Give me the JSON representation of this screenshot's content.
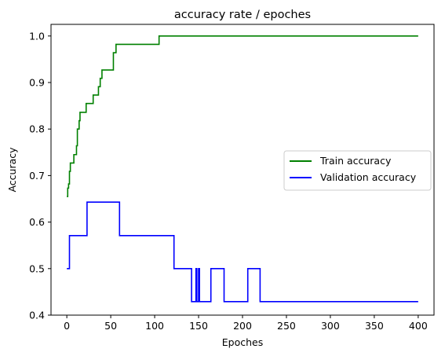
{
  "chart_data": {
    "type": "line",
    "title": "accuracy rate / epoches",
    "xlabel": "Epoches",
    "ylabel": "Accuracy",
    "xlim": [
      -18,
      418
    ],
    "ylim": [
      0.4,
      1.025
    ],
    "xticks": [
      0,
      50,
      100,
      150,
      200,
      250,
      300,
      350,
      400
    ],
    "yticks": [
      0.4,
      0.5,
      0.6,
      0.7,
      0.8,
      0.9,
      1.0
    ],
    "xtick_labels": [
      "0",
      "50",
      "100",
      "150",
      "200",
      "250",
      "300",
      "350",
      "400"
    ],
    "ytick_labels": [
      "0.4",
      "0.5",
      "0.6",
      "0.7",
      "0.8",
      "0.9",
      "1.0"
    ],
    "grid": false,
    "legend_position": "center-right",
    "series": [
      {
        "name": "Train accuracy",
        "color": "#008000",
        "x": [
          0,
          1,
          1,
          2,
          2,
          3,
          3,
          4,
          4,
          8,
          8,
          11,
          11,
          12,
          12,
          14,
          14,
          15,
          15,
          16,
          16,
          22,
          22,
          26,
          26,
          30,
          30,
          36,
          36,
          37,
          37,
          38,
          38,
          40,
          40,
          47,
          47,
          53,
          53,
          55,
          55,
          56,
          56,
          58,
          58,
          105,
          105,
          400
        ],
        "y": [
          0.655,
          0.655,
          0.673,
          0.673,
          0.682,
          0.682,
          0.709,
          0.709,
          0.727,
          0.727,
          0.745,
          0.745,
          0.764,
          0.764,
          0.8,
          0.8,
          0.818,
          0.818,
          0.836,
          0.836,
          0.836,
          0.836,
          0.855,
          0.855,
          0.855,
          0.855,
          0.873,
          0.873,
          0.891,
          0.891,
          0.891,
          0.891,
          0.909,
          0.909,
          0.927,
          0.927,
          0.927,
          0.927,
          0.964,
          0.964,
          0.964,
          0.964,
          0.982,
          0.982,
          0.982,
          0.982,
          1.0,
          1.0
        ]
      },
      {
        "name": "Validation accuracy",
        "color": "#0000ff",
        "x": [
          0,
          3,
          3,
          23,
          23,
          60,
          60,
          122,
          122,
          142,
          142,
          147,
          147,
          148,
          148,
          150,
          150,
          151,
          151,
          153,
          153,
          164,
          164,
          179,
          179,
          206,
          206,
          220,
          220,
          400
        ],
        "y": [
          0.5,
          0.5,
          0.571,
          0.571,
          0.643,
          0.643,
          0.571,
          0.571,
          0.5,
          0.5,
          0.429,
          0.429,
          0.5,
          0.5,
          0.429,
          0.429,
          0.5,
          0.5,
          0.429,
          0.429,
          0.429,
          0.429,
          0.5,
          0.5,
          0.429,
          0.429,
          0.5,
          0.5,
          0.429,
          0.429
        ]
      }
    ]
  }
}
